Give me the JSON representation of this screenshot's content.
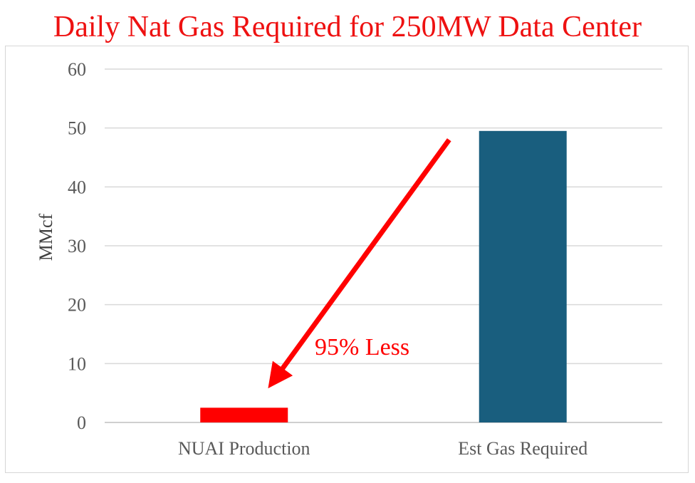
{
  "chart_data": {
    "type": "bar",
    "title": "Daily Nat Gas Required for 250MW Data Center",
    "xlabel": "",
    "ylabel": "MMcf",
    "categories": [
      "NUAI Production",
      "Est Gas Required"
    ],
    "values": [
      2.5,
      49.5
    ],
    "bar_colors": [
      "#ff0000",
      "#195e7e"
    ],
    "ylim": [
      0,
      60
    ],
    "yticks": [
      0,
      10,
      20,
      30,
      40,
      50,
      60
    ],
    "grid": true,
    "legend": "none",
    "annotation": {
      "text": "95% Less",
      "color": "#ff0000",
      "arrow_from": "top of Est Gas Required bar",
      "arrow_to": "NUAI Production bar"
    }
  },
  "colors": {
    "title": "#ee1111",
    "gridline": "#d9d9d9",
    "axis": "#bfbfbf",
    "arrow": "#ff0000"
  }
}
